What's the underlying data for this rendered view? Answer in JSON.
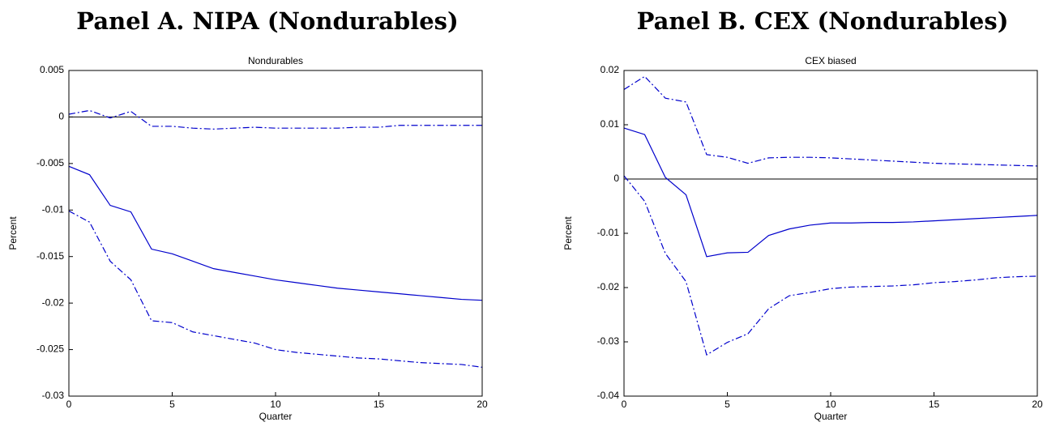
{
  "chart_data": [
    {
      "type": "line",
      "panel_title": "Panel A. NIPA (Nondurables)",
      "title": "Nondurables",
      "xlabel": "Quarter",
      "ylabel": "Percent",
      "x": [
        0,
        1,
        2,
        3,
        4,
        5,
        6,
        7,
        8,
        9,
        10,
        11,
        12,
        13,
        14,
        15,
        16,
        17,
        18,
        19,
        20
      ],
      "xlim": [
        0,
        20
      ],
      "xticks": [
        0,
        5,
        10,
        15,
        20
      ],
      "ylim": [
        -0.03,
        0.005
      ],
      "yticks": [
        0.005,
        0,
        -0.005,
        -0.01,
        -0.015,
        -0.02,
        -0.025,
        -0.03
      ],
      "hline": 0,
      "series": [
        {
          "color": "#0000cc",
          "dash": "solid",
          "values": [
            -0.0053,
            -0.0062,
            -0.0095,
            -0.0102,
            -0.0142,
            -0.0147,
            -0.0155,
            -0.0163,
            -0.0167,
            -0.0171,
            -0.0175,
            -0.0178,
            -0.0181,
            -0.0184,
            -0.0186,
            -0.0188,
            -0.019,
            -0.0192,
            -0.0194,
            -0.0196,
            -0.0197
          ]
        },
        {
          "color": "#0000cc",
          "dash": "dashdot",
          "values": [
            0.0003,
            0.0007,
            -0.0001,
            0.0006,
            -0.001,
            -0.001,
            -0.0012,
            -0.0013,
            -0.0012,
            -0.0011,
            -0.0012,
            -0.0012,
            -0.0012,
            -0.0012,
            -0.0011,
            -0.0011,
            -0.0009,
            -0.0009,
            -0.0009,
            -0.0009,
            -0.0009
          ]
        },
        {
          "color": "#0000cc",
          "dash": "dashdot",
          "values": [
            -0.0101,
            -0.0113,
            -0.0155,
            -0.0175,
            -0.0219,
            -0.0221,
            -0.0231,
            -0.0235,
            -0.0239,
            -0.0243,
            -0.025,
            -0.0253,
            -0.0255,
            -0.0257,
            -0.0259,
            -0.026,
            -0.0262,
            -0.0264,
            -0.0265,
            -0.0266,
            -0.0269
          ]
        }
      ]
    },
    {
      "type": "line",
      "panel_title": "Panel B. CEX (Nondurables)",
      "title": "CEX biased",
      "xlabel": "Quarter",
      "ylabel": "Percent",
      "x": [
        0,
        1,
        2,
        3,
        4,
        5,
        6,
        7,
        8,
        9,
        10,
        11,
        12,
        13,
        14,
        15,
        16,
        17,
        18,
        19,
        20
      ],
      "xlim": [
        0,
        20
      ],
      "xticks": [
        0,
        5,
        10,
        15,
        20
      ],
      "ylim": [
        -0.04,
        0.02
      ],
      "yticks": [
        0.02,
        0.01,
        0,
        -0.01,
        -0.02,
        -0.03,
        -0.04
      ],
      "hline": 0,
      "series": [
        {
          "color": "#0000cc",
          "dash": "solid",
          "values": [
            0.0094,
            0.0082,
            0.0003,
            -0.0029,
            -0.0143,
            -0.0136,
            -0.0135,
            -0.0104,
            -0.0092,
            -0.0085,
            -0.0081,
            -0.0081,
            -0.008,
            -0.008,
            -0.0079,
            -0.0077,
            -0.0075,
            -0.0073,
            -0.0071,
            -0.0069,
            -0.0067
          ]
        },
        {
          "color": "#0000cc",
          "dash": "dashdot",
          "values": [
            0.0165,
            0.0189,
            0.0149,
            0.0142,
            0.0045,
            0.004,
            0.0029,
            0.0039,
            0.004,
            0.004,
            0.0039,
            0.0037,
            0.0035,
            0.0033,
            0.0031,
            0.0029,
            0.0028,
            0.0027,
            0.0026,
            0.0025,
            0.0024
          ]
        },
        {
          "color": "#0000cc",
          "dash": "dashdot",
          "values": [
            0.0006,
            -0.0041,
            -0.0137,
            -0.0189,
            -0.0324,
            -0.0301,
            -0.0285,
            -0.0239,
            -0.0215,
            -0.0209,
            -0.0202,
            -0.0199,
            -0.0198,
            -0.0197,
            -0.0195,
            -0.0191,
            -0.0189,
            -0.0186,
            -0.0182,
            -0.018,
            -0.0179
          ]
        }
      ]
    }
  ]
}
